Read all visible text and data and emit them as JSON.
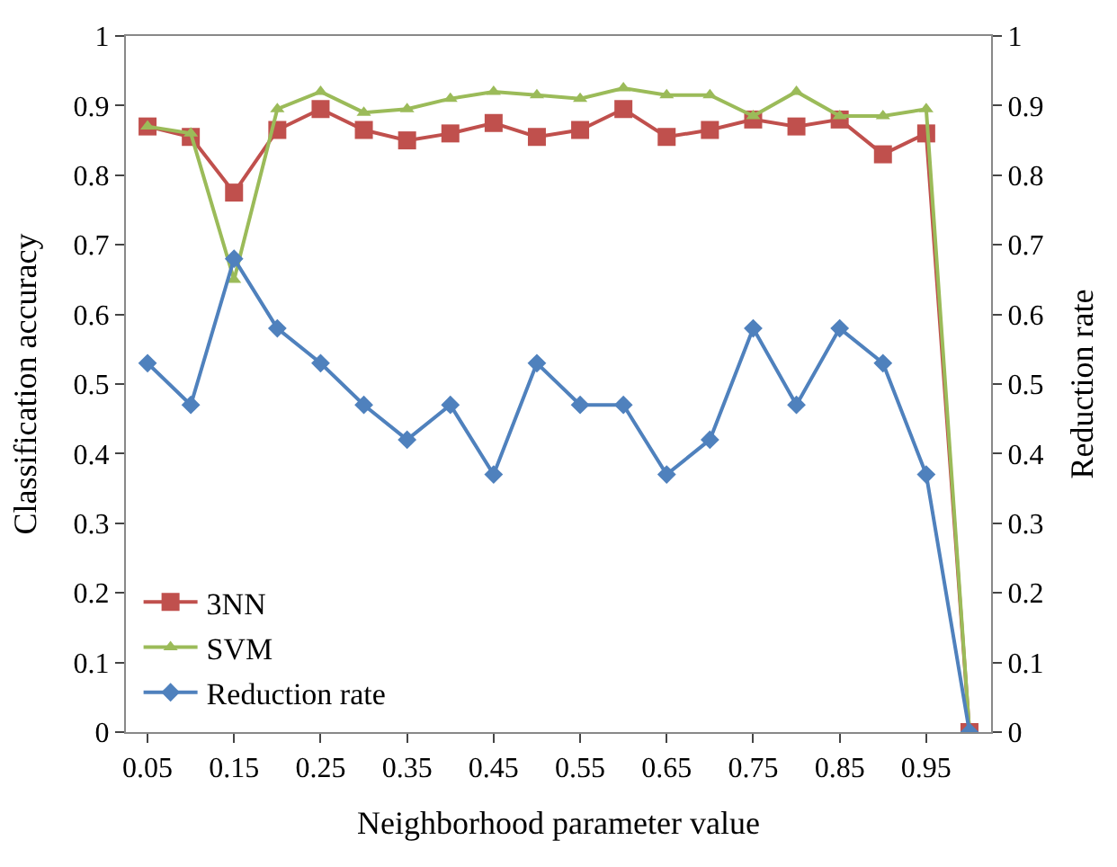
{
  "chart_data": {
    "type": "line",
    "xlabel": "Neighborhood parameter value",
    "ylabel": "Classification accuracy",
    "y2label": "Reduction rate",
    "categories": [
      "0.05",
      null,
      "0.15",
      null,
      "0.25",
      null,
      "0.35",
      null,
      "0.45",
      null,
      "0.55",
      null,
      "0.65",
      null,
      "0.75",
      null,
      "0.85",
      null,
      "0.95",
      null
    ],
    "series": [
      {
        "name": "3NN",
        "color": "#c0504d",
        "marker": "square",
        "values": [
          0.87,
          0.855,
          0.775,
          0.865,
          0.895,
          0.865,
          0.85,
          0.86,
          0.875,
          0.855,
          0.865,
          0.895,
          0.855,
          0.865,
          0.88,
          0.87,
          0.88,
          0.83,
          0.86,
          0
        ]
      },
      {
        "name": "SVM",
        "color": "#9bbb59",
        "marker": "triangle",
        "values": [
          0.87,
          0.86,
          0.65,
          0.895,
          0.92,
          0.89,
          0.895,
          0.91,
          0.92,
          0.915,
          0.91,
          0.925,
          0.915,
          0.915,
          0.885,
          0.92,
          0.885,
          0.885,
          0.895,
          0
        ]
      },
      {
        "name": "Reduction rate",
        "color": "#4f81bd",
        "marker": "diamond",
        "axis": "y2",
        "values": [
          0.53,
          0.47,
          0.68,
          0.58,
          0.53,
          0.47,
          0.42,
          0.47,
          0.37,
          0.53,
          0.47,
          0.47,
          0.37,
          0.42,
          0.58,
          0.47,
          0.58,
          0.53,
          0.37,
          0
        ]
      }
    ],
    "ylim": [
      0,
      1
    ],
    "yticks": [
      0,
      0.1,
      0.2,
      0.3,
      0.4,
      0.5,
      0.6,
      0.7,
      0.8,
      0.9,
      1
    ],
    "y2lim": [
      0,
      1
    ],
    "y2ticks": [
      0,
      0.1,
      0.2,
      0.3,
      0.4,
      0.5,
      0.6,
      0.7,
      0.8,
      0.9,
      1
    ],
    "legend": "bottom left",
    "line_style": "solid"
  }
}
